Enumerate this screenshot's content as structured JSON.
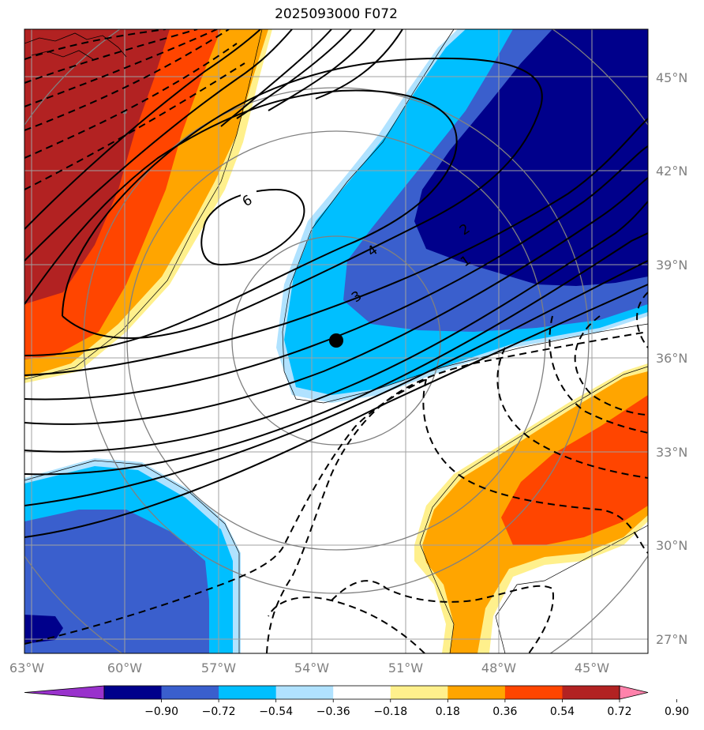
{
  "title": "2025093000 F072",
  "map": {
    "lon_labels": [
      "63°W",
      "60°W",
      "57°W",
      "54°W",
      "51°W",
      "48°W",
      "45°W"
    ],
    "lat_labels": [
      "45°N",
      "42°N",
      "39°N",
      "36°N",
      "33°N",
      "30°N",
      "27°N"
    ],
    "contour_labels": [
      "6",
      "4",
      "3",
      "2",
      "1"
    ],
    "center_marker": {
      "lat": 36.5,
      "lon": -53.2
    },
    "grid": true
  },
  "colorbar": {
    "ticks": [
      "−0.90",
      "−0.72",
      "−0.54",
      "−0.36",
      "−0.18",
      "0.18",
      "0.36",
      "0.54",
      "0.72",
      "0.90"
    ],
    "colors": [
      "#9932cc",
      "#00008b",
      "#3a5fcd",
      "#00bfff",
      "#b0e2ff",
      "#ffffff",
      "#fff08c",
      "#ffa500",
      "#ff4500",
      "#b22222",
      "#ff82ab"
    ],
    "extend": "both"
  }
}
